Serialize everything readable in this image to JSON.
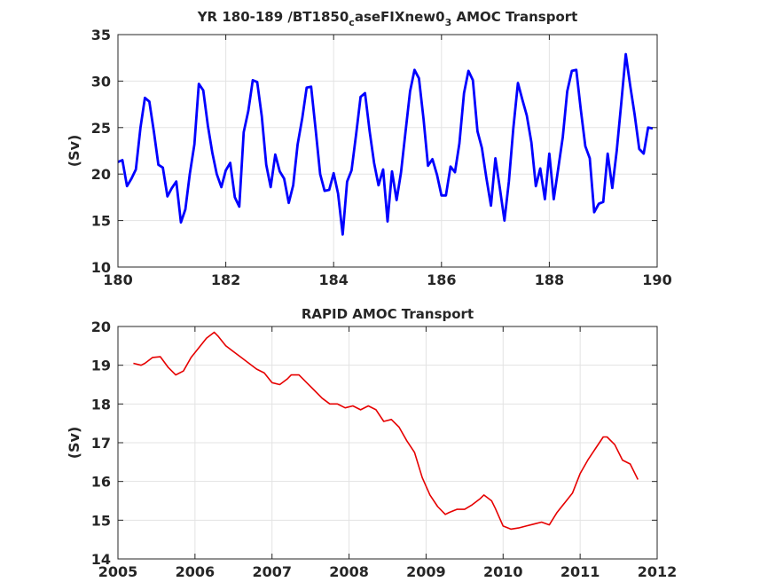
{
  "chart_data": [
    {
      "type": "line",
      "title": "YR 180-189 /BT1850",
      "title_sub": "c",
      "title_mid": "aseFIXnew0",
      "title_sub2": "3",
      "title_end": " AMOC Transport",
      "xlabel": "",
      "ylabel": "(Sv)",
      "xlim": [
        180,
        190
      ],
      "ylim": [
        10,
        35
      ],
      "xticks": [
        180,
        182,
        184,
        186,
        188,
        190
      ],
      "yticks": [
        10,
        15,
        20,
        25,
        30,
        35
      ],
      "grid": true,
      "color": "#0000ff",
      "series": [
        {
          "x": [
            180.0,
            180.083,
            180.167,
            180.25,
            180.333,
            180.417,
            180.5,
            180.583,
            180.667,
            180.75,
            180.833,
            180.917,
            181.0,
            181.083,
            181.167,
            181.25,
            181.333,
            181.417,
            181.5,
            181.583,
            181.667,
            181.75,
            181.833,
            181.917,
            182.0,
            182.083,
            182.167,
            182.25,
            182.333,
            182.417,
            182.5,
            182.583,
            182.667,
            182.75,
            182.833,
            182.917,
            183.0,
            183.083,
            183.167,
            183.25,
            183.333,
            183.417,
            183.5,
            183.583,
            183.667,
            183.75,
            183.833,
            183.917,
            184.0,
            184.083,
            184.167,
            184.25,
            184.333,
            184.417,
            184.5,
            184.583,
            184.667,
            184.75,
            184.833,
            184.917,
            185.0,
            185.083,
            185.167,
            185.25,
            185.333,
            185.417,
            185.5,
            185.583,
            185.667,
            185.75,
            185.833,
            185.917,
            186.0,
            186.083,
            186.167,
            186.25,
            186.333,
            186.417,
            186.5,
            186.583,
            186.667,
            186.75,
            186.833,
            186.917,
            187.0,
            187.083,
            187.167,
            187.25,
            187.333,
            187.417,
            187.5,
            187.583,
            187.667,
            187.75,
            187.833,
            187.917,
            188.0,
            188.083,
            188.167,
            188.25,
            188.333,
            188.417,
            188.5,
            188.583,
            188.667,
            188.75,
            188.833,
            188.917,
            189.0,
            189.083,
            189.167,
            189.25,
            189.333,
            189.417,
            189.5,
            189.583,
            189.667,
            189.75,
            189.833,
            189.917
          ],
          "y": [
            21.3,
            21.5,
            18.7,
            19.5,
            20.5,
            25.0,
            28.2,
            27.8,
            24.5,
            21.0,
            20.7,
            17.6,
            18.5,
            19.2,
            14.8,
            16.2,
            20.0,
            23.2,
            29.7,
            29.0,
            25.2,
            22.3,
            20.0,
            18.6,
            20.4,
            21.2,
            17.5,
            16.5,
            24.5,
            26.8,
            30.1,
            29.9,
            26.2,
            21.0,
            18.6,
            22.1,
            20.3,
            19.5,
            16.9,
            18.8,
            23.2,
            26.0,
            29.3,
            29.4,
            24.7,
            20.0,
            18.2,
            18.3,
            20.1,
            17.9,
            13.5,
            19.2,
            20.4,
            24.3,
            28.3,
            28.7,
            24.6,
            21.2,
            18.8,
            20.5,
            14.9,
            20.3,
            17.2,
            20.2,
            24.5,
            28.9,
            31.2,
            30.3,
            25.9,
            20.9,
            21.6,
            19.9,
            17.7,
            17.7,
            20.8,
            20.2,
            23.3,
            28.7,
            31.1,
            30.1,
            24.6,
            22.8,
            19.6,
            16.6,
            21.7,
            18.5,
            15.0,
            19.2,
            24.9,
            29.8,
            28.0,
            26.3,
            23.4,
            18.7,
            20.6,
            17.3,
            22.2,
            17.3,
            20.7,
            24.0,
            28.9,
            31.1,
            31.2,
            27.0,
            23.0,
            21.7,
            15.9,
            16.8,
            17.0,
            22.2,
            18.5,
            22.5,
            27.5,
            32.9,
            29.5,
            26.4,
            22.7,
            22.2,
            25.0,
            24.9
          ]
        }
      ]
    },
    {
      "type": "line",
      "title": "RAPID AMOC Transport",
      "xlabel": "",
      "ylabel": "(Sv)",
      "xlim": [
        2005,
        2012
      ],
      "ylim": [
        14,
        20
      ],
      "xticks": [
        2005,
        2006,
        2007,
        2008,
        2009,
        2010,
        2011,
        2012
      ],
      "yticks": [
        14,
        15,
        16,
        17,
        18,
        19,
        20
      ],
      "grid": true,
      "color": "#e60000",
      "series": [
        {
          "x": [
            2005.2,
            2005.3,
            2005.35,
            2005.45,
            2005.55,
            2005.65,
            2005.75,
            2005.85,
            2005.95,
            2006.05,
            2006.15,
            2006.25,
            2006.3,
            2006.4,
            2006.5,
            2006.6,
            2006.7,
            2006.8,
            2006.9,
            2007.0,
            2007.1,
            2007.2,
            2007.25,
            2007.35,
            2007.45,
            2007.55,
            2007.65,
            2007.75,
            2007.85,
            2007.95,
            2008.05,
            2008.15,
            2008.25,
            2008.35,
            2008.45,
            2008.55,
            2008.65,
            2008.75,
            2008.85,
            2008.95,
            2009.05,
            2009.15,
            2009.25,
            2009.3,
            2009.4,
            2009.5,
            2009.6,
            2009.7,
            2009.75,
            2009.85,
            2009.9,
            2010.0,
            2010.1,
            2010.2,
            2010.3,
            2010.4,
            2010.5,
            2010.6,
            2010.7,
            2010.8,
            2010.9,
            2011.0,
            2011.1,
            2011.2,
            2011.3,
            2011.35,
            2011.45,
            2011.55,
            2011.65,
            2011.75
          ],
          "y": [
            19.05,
            19.0,
            19.05,
            19.2,
            19.22,
            18.95,
            18.75,
            18.85,
            19.2,
            19.45,
            19.7,
            19.85,
            19.75,
            19.5,
            19.35,
            19.2,
            19.05,
            18.9,
            18.8,
            18.55,
            18.5,
            18.65,
            18.75,
            18.75,
            18.55,
            18.35,
            18.15,
            18.0,
            18.0,
            17.9,
            17.95,
            17.85,
            17.95,
            17.85,
            17.55,
            17.6,
            17.4,
            17.05,
            16.75,
            16.1,
            15.65,
            15.35,
            15.15,
            15.2,
            15.28,
            15.28,
            15.4,
            15.55,
            15.65,
            15.5,
            15.3,
            14.85,
            14.77,
            14.8,
            14.85,
            14.9,
            14.95,
            14.88,
            15.2,
            15.45,
            15.7,
            16.2,
            16.55,
            16.85,
            17.15,
            17.15,
            16.95,
            16.55,
            16.45,
            16.05
          ]
        }
      ]
    }
  ]
}
